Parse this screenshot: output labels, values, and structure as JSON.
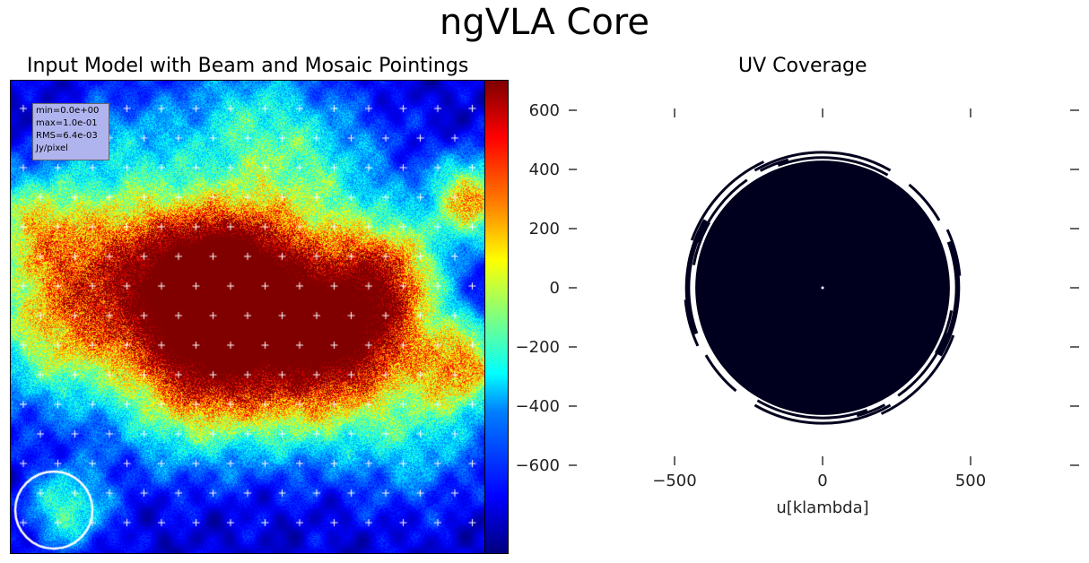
{
  "figure": {
    "title": "ngVLA Core"
  },
  "chart_data": [
    {
      "type": "heatmap",
      "title": "Input Model with Beam and Mosaic Pointings",
      "stats": [
        "min=0.0e+00",
        "max=1.0e-01",
        "RMS=6.4e-03",
        "Jy/pixel"
      ],
      "colormap": "jet",
      "color_range": [
        0.0,
        0.1
      ],
      "overlay": {
        "pointings_marker": "+",
        "pointings_color": "#ffffff",
        "beam_marker": "circle",
        "beam_color": "#ffffff",
        "beam_location": "bottom-left"
      }
    },
    {
      "type": "scatter",
      "title": "UV Coverage",
      "xlabel": "u[klambda]",
      "ylabel": "",
      "xticks": [
        -500,
        0,
        500
      ],
      "xtick_labels": [
        "−500",
        "0",
        "500"
      ],
      "yticks": [
        600,
        400,
        200,
        0,
        -200,
        -400,
        -600
      ],
      "ytick_labels": [
        "600",
        "400",
        "200",
        "0",
        "−200",
        "−400",
        "−600"
      ],
      "xlim": [
        -1000,
        1000
      ],
      "ylim": [
        -740,
        710
      ],
      "fill_radius": 430,
      "point_color": "#00001e",
      "tracks": [
        {
          "r": 440,
          "a1": 110,
          "a2": 60
        },
        {
          "r": 448,
          "a1": 118,
          "a2": 105
        },
        {
          "r": 460,
          "a1": 150,
          "a2": 200
        },
        {
          "r": 455,
          "a1": 210,
          "a2": 230
        },
        {
          "r": 452,
          "a1": -30,
          "a2": 20
        },
        {
          "r": 465,
          "a1": 25,
          "a2": 5
        },
        {
          "r": 470,
          "a1": -65,
          "a2": -20
        },
        {
          "r": 458,
          "a1": 240,
          "a2": 300
        },
        {
          "r": 445,
          "a1": 125,
          "a2": 160
        },
        {
          "r": 442,
          "a1": 330,
          "a2": 350
        }
      ]
    }
  ]
}
